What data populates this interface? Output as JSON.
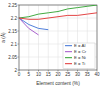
{
  "chart_data": {
    "type": "line",
    "x_label": "Element content (%)",
    "y_label": "a (Å)",
    "x": [
      0,
      5,
      10,
      15,
      20,
      25,
      30,
      35,
      40
    ],
    "series": [
      {
        "name": "E = Al",
        "color": "#3b6fd6",
        "values": [
          2.2,
          2.175,
          2.16,
          2.155,
          null,
          null,
          null,
          null,
          null
        ]
      },
      {
        "name": "E = Cr",
        "color": "#a050c8",
        "values": [
          2.2,
          2.16,
          2.135,
          null,
          null,
          null,
          null,
          null,
          null
        ]
      },
      {
        "name": "E = Ni",
        "color": "#2ca02c",
        "values": [
          2.2,
          2.205,
          2.215,
          2.22,
          2.225,
          2.235,
          2.24,
          2.245,
          2.25
        ]
      },
      {
        "name": "E = Ti",
        "color": "#e03030",
        "values": [
          2.2,
          2.195,
          2.195,
          2.2,
          2.205,
          2.21,
          2.21,
          2.215,
          2.22
        ]
      }
    ],
    "xlim": [
      0,
      40
    ],
    "xticks": [
      0,
      5,
      10,
      15,
      20,
      25,
      30,
      35,
      40
    ],
    "ylim": [
      2,
      2.25
    ],
    "yticks": [
      2,
      2.05,
      2.1,
      2.15,
      2.2,
      2.25
    ],
    "grid": true,
    "legend": "lower right"
  }
}
